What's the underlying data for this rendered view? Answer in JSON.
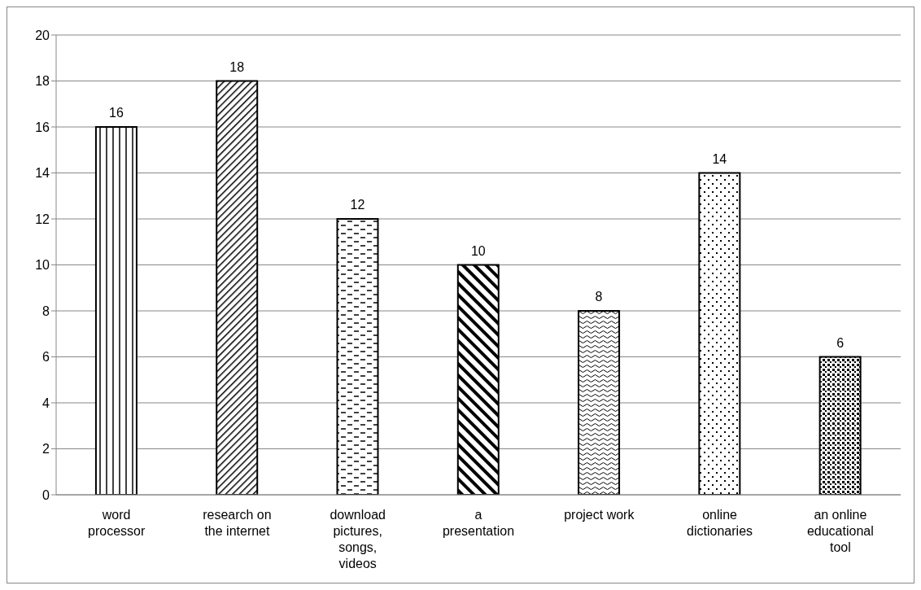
{
  "chart_data": {
    "type": "bar",
    "categories": [
      "word processor",
      "research on the internet",
      "download pictures, songs, videos",
      "a presentation",
      "project work",
      "online dictionaries",
      "an online educational tool"
    ],
    "values": [
      16,
      18,
      12,
      10,
      8,
      14,
      6
    ],
    "colors": [
      "#000000",
      "#000000",
      "#000000",
      "#000000",
      "#000000",
      "#000000",
      "#000000"
    ],
    "ylim": [
      0,
      20
    ],
    "yticks": [
      0,
      2,
      4,
      6,
      8,
      10,
      12,
      14,
      16,
      18,
      20
    ],
    "grid": "y",
    "data_labels": true
  }
}
